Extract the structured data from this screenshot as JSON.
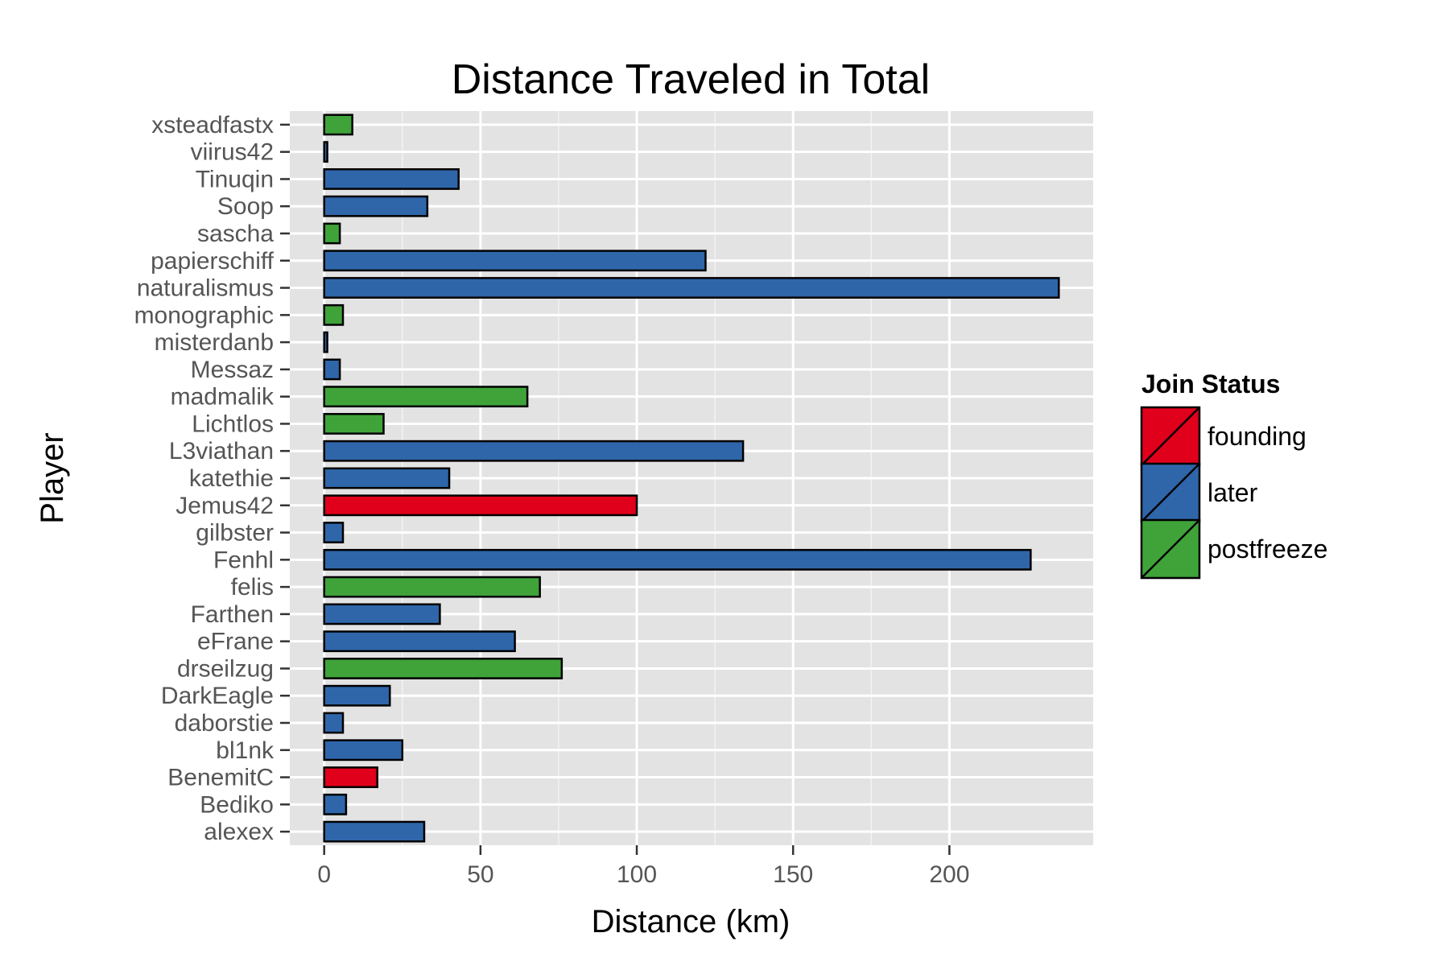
{
  "chart_data": {
    "type": "bar",
    "orientation": "horizontal",
    "title": "Distance Traveled in Total",
    "xlabel": "Distance (km)",
    "ylabel": "Player",
    "xlim": [
      -11,
      246
    ],
    "x_ticks": [
      0,
      50,
      100,
      150,
      200
    ],
    "grid": true,
    "legend": {
      "title": "Join Status",
      "placement": "right",
      "entries": [
        {
          "name": "founding",
          "color": "#e0001b"
        },
        {
          "name": "later",
          "color": "#2f66aa"
        },
        {
          "name": "postfreeze",
          "color": "#3fa33a"
        }
      ]
    },
    "categories": [
      "xsteadfastx",
      "viirus42",
      "Tinuqin",
      "Soop",
      "sascha",
      "papierschiff",
      "naturalismus",
      "monographic",
      "misterdanb",
      "Messaz",
      "madmalik",
      "Lichtlos",
      "L3viathan",
      "katethie",
      "Jemus42",
      "gilbster",
      "Fenhl",
      "felis",
      "Farthen",
      "eFrane",
      "drseilzug",
      "DarkEagle",
      "daborstie",
      "bl1nk",
      "BenemitC",
      "Bediko",
      "alexex"
    ],
    "values": [
      9,
      1,
      43,
      33,
      5,
      122,
      235,
      6,
      1,
      5,
      65,
      19,
      134,
      40,
      100,
      6,
      226,
      69,
      37,
      61,
      76,
      21,
      6,
      25,
      17,
      7,
      32
    ],
    "groups": [
      "postfreeze",
      "later",
      "later",
      "later",
      "postfreeze",
      "later",
      "later",
      "postfreeze",
      "later",
      "later",
      "postfreeze",
      "postfreeze",
      "later",
      "later",
      "founding",
      "later",
      "later",
      "postfreeze",
      "later",
      "later",
      "postfreeze",
      "later",
      "later",
      "later",
      "founding",
      "later",
      "later"
    ]
  }
}
